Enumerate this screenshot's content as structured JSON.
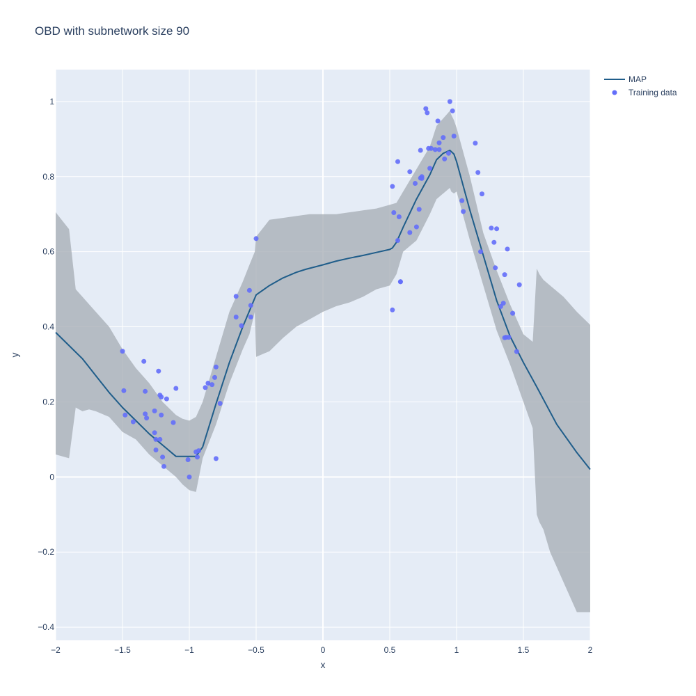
{
  "chart_data": {
    "type": "line",
    "title": "OBD with subnetwork size 90",
    "xlabel": "x",
    "ylabel": "y",
    "xlim": [
      -2,
      2
    ],
    "ylim": [
      -0.435,
      1.085
    ],
    "grid": true,
    "legend_position": "top-right",
    "x_ticks": [
      -2,
      -1.5,
      -1,
      -0.5,
      0,
      0.5,
      1,
      1.5,
      2
    ],
    "x_tick_labels": [
      "−2",
      "−1.5",
      "−1",
      "−0.5",
      "0",
      "0.5",
      "1",
      "1.5",
      "2"
    ],
    "y_ticks": [
      -0.4,
      -0.2,
      0,
      0.2,
      0.4,
      0.6,
      0.8,
      1
    ],
    "y_tick_labels": [
      "−0.4",
      "−0.2",
      "0",
      "0.2",
      "0.4",
      "0.6",
      "0.8",
      "1"
    ],
    "colors": {
      "plot_bg": "#e5ecf6",
      "grid": "#ffffff",
      "band": "#a8aeb6",
      "map_line": "#1f5d8a",
      "points": "#636efa",
      "text": "#2a3f5f"
    },
    "band": {
      "x": [
        -2,
        -1.9,
        -1.85,
        -1.8,
        -1.75,
        -1.7,
        -1.6,
        -1.5,
        -1.4,
        -1.3,
        -1.2,
        -1.1,
        -1.05,
        -1.0,
        -0.95,
        -0.9,
        -0.8,
        -0.7,
        -0.6,
        -0.55,
        -0.51,
        -0.5,
        -0.4,
        -0.3,
        -0.2,
        -0.1,
        0.0,
        0.1,
        0.2,
        0.3,
        0.4,
        0.5,
        0.55,
        0.6,
        0.7,
        0.8,
        0.85,
        0.9,
        0.95,
        0.96,
        0.98,
        1.0,
        1.1,
        1.2,
        1.3,
        1.4,
        1.5,
        1.57,
        1.6,
        1.62,
        1.65,
        1.7,
        1.8,
        1.9,
        2.0
      ],
      "upper": [
        0.705,
        0.66,
        0.5,
        0.48,
        0.46,
        0.44,
        0.4,
        0.34,
        0.29,
        0.25,
        0.2,
        0.165,
        0.155,
        0.15,
        0.16,
        0.2,
        0.32,
        0.44,
        0.52,
        0.565,
        0.6,
        0.64,
        0.685,
        0.69,
        0.695,
        0.7,
        0.7,
        0.7,
        0.705,
        0.71,
        0.715,
        0.725,
        0.73,
        0.76,
        0.82,
        0.88,
        0.935,
        0.955,
        0.975,
        0.965,
        0.95,
        0.93,
        0.8,
        0.65,
        0.55,
        0.46,
        0.38,
        0.36,
        0.555,
        0.54,
        0.525,
        0.51,
        0.48,
        0.44,
        0.405
      ],
      "lower": [
        0.06,
        0.05,
        0.185,
        0.175,
        0.18,
        0.175,
        0.16,
        0.12,
        0.1,
        0.06,
        0.03,
        0.0,
        -0.02,
        -0.035,
        -0.04,
        0.05,
        0.14,
        0.25,
        0.34,
        0.38,
        0.44,
        0.32,
        0.335,
        0.37,
        0.4,
        0.42,
        0.44,
        0.455,
        0.465,
        0.48,
        0.5,
        0.51,
        0.54,
        0.6,
        0.63,
        0.7,
        0.74,
        0.755,
        0.77,
        0.76,
        0.755,
        0.76,
        0.63,
        0.51,
        0.39,
        0.3,
        0.2,
        0.13,
        -0.1,
        -0.12,
        -0.14,
        -0.2,
        -0.28,
        -0.36,
        -0.36
      ]
    },
    "series": [
      {
        "name": "MAP",
        "mode": "lines",
        "x": [
          -2,
          -1.9,
          -1.8,
          -1.7,
          -1.6,
          -1.5,
          -1.4,
          -1.3,
          -1.2,
          -1.1,
          -1.0,
          -0.95,
          -0.93,
          -0.9,
          -0.8,
          -0.7,
          -0.6,
          -0.5,
          -0.4,
          -0.3,
          -0.2,
          -0.13,
          0.0,
          0.1,
          0.2,
          0.3,
          0.4,
          0.5,
          0.52,
          0.55,
          0.6,
          0.7,
          0.8,
          0.85,
          0.9,
          0.95,
          0.98,
          1.0,
          1.1,
          1.2,
          1.3,
          1.4,
          1.5,
          1.6,
          1.75,
          1.9,
          2.0
        ],
        "y": [
          0.385,
          0.35,
          0.315,
          0.27,
          0.225,
          0.185,
          0.15,
          0.115,
          0.085,
          0.055,
          0.055,
          0.055,
          0.065,
          0.08,
          0.195,
          0.305,
          0.4,
          0.485,
          0.51,
          0.53,
          0.545,
          0.553,
          0.565,
          0.575,
          0.583,
          0.59,
          0.598,
          0.606,
          0.61,
          0.625,
          0.665,
          0.74,
          0.805,
          0.845,
          0.862,
          0.87,
          0.86,
          0.84,
          0.71,
          0.59,
          0.47,
          0.375,
          0.305,
          0.24,
          0.14,
          0.065,
          0.02
        ]
      },
      {
        "name": "Training data",
        "mode": "markers",
        "x": [
          -1.5,
          -1.49,
          -1.48,
          -1.42,
          -1.34,
          -1.33,
          -1.33,
          -1.32,
          -1.26,
          -1.26,
          -1.25,
          -1.25,
          -1.23,
          -1.22,
          -1.22,
          -1.21,
          -1.21,
          -1.2,
          -1.19,
          -1.17,
          -1.12,
          -1.1,
          -1.01,
          -1.0,
          -0.95,
          -0.94,
          -0.93,
          -0.88,
          -0.86,
          -0.83,
          -0.81,
          -0.8,
          -0.8,
          -0.77,
          -0.65,
          -0.65,
          -0.61,
          -0.55,
          -0.54,
          -0.54,
          -0.5,
          0.52,
          0.52,
          0.53,
          0.56,
          0.56,
          0.57,
          0.58,
          0.58,
          0.65,
          0.65,
          0.69,
          0.7,
          0.72,
          0.73,
          0.73,
          0.74,
          0.74,
          0.77,
          0.78,
          0.79,
          0.8,
          0.81,
          0.84,
          0.86,
          0.87,
          0.87,
          0.9,
          0.91,
          0.94,
          0.95,
          0.97,
          0.98,
          1.04,
          1.05,
          1.14,
          1.16,
          1.18,
          1.19,
          1.26,
          1.28,
          1.29,
          1.3,
          1.33,
          1.35,
          1.36,
          1.36,
          1.37,
          1.38,
          1.39,
          1.42,
          1.45,
          1.47
        ],
        "y": [
          0.335,
          0.23,
          0.165,
          0.147,
          0.308,
          0.228,
          0.168,
          0.157,
          0.176,
          0.118,
          0.1,
          0.072,
          0.282,
          0.218,
          0.1,
          0.213,
          0.165,
          0.053,
          0.028,
          0.208,
          0.145,
          0.236,
          0.046,
          0.0,
          0.067,
          0.053,
          0.07,
          0.238,
          0.25,
          0.246,
          0.265,
          0.293,
          0.049,
          0.196,
          0.481,
          0.426,
          0.403,
          0.497,
          0.457,
          0.426,
          0.635,
          0.445,
          0.774,
          0.704,
          0.63,
          0.84,
          0.693,
          0.52,
          0.52,
          0.813,
          0.651,
          0.782,
          0.666,
          0.713,
          0.796,
          0.87,
          0.8,
          0.795,
          0.981,
          0.97,
          0.875,
          0.822,
          0.875,
          0.872,
          0.948,
          0.89,
          0.872,
          0.904,
          0.847,
          0.862,
          1.0,
          0.975,
          0.908,
          0.736,
          0.707,
          0.889,
          0.811,
          0.6,
          0.754,
          0.663,
          0.625,
          0.557,
          0.661,
          0.454,
          0.463,
          0.371,
          0.539,
          0.372,
          0.607,
          0.372,
          0.436,
          0.334,
          0.512
        ]
      }
    ]
  }
}
